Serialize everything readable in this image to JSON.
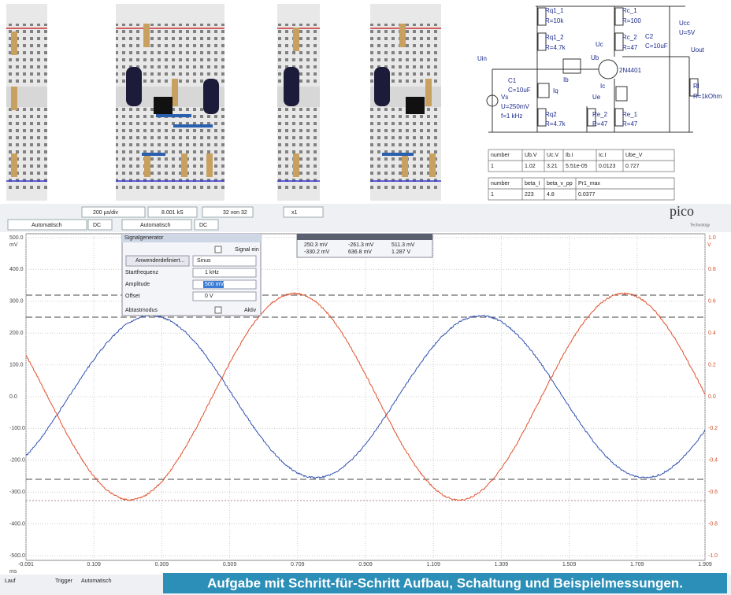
{
  "schematic": {
    "labels": [
      "Rq1_1",
      "R=10k",
      "Rq1_2",
      "R=4.7k",
      "Rc_1",
      "R=100",
      "Rc_2",
      "R=47",
      "C2",
      "C=10uF",
      "Ucc",
      "U=5V",
      "Uout",
      "Uin",
      "Uc",
      "Ub",
      "2N4401",
      "C1",
      "C=10uF",
      "Ib",
      "Iq",
      "Ic",
      "Ue",
      "Vs",
      "U=250mV",
      "f=1 kHz",
      "Rq2",
      "R=4.7k",
      "Re_2",
      "R=47",
      "Re_1",
      "R=47",
      "Rl",
      "R=1kOhm"
    ]
  },
  "table1": {
    "header": [
      "number",
      "Ub.V",
      "Uc.V",
      "Ib.I",
      "Ic.I",
      "Ube_V"
    ],
    "row": [
      "1",
      "1.02",
      "3.21",
      "5.51e-05",
      "0.0123",
      "0.727"
    ]
  },
  "table2": {
    "header": [
      "number",
      "beta_I",
      "beta_v_pp",
      "Pr1_max"
    ],
    "row": [
      "1",
      "223",
      "4.8",
      "0.0377"
    ]
  },
  "toolbar": {
    "timebase": "200 µs/div",
    "samples": "8.001 kS",
    "buffer": "32 von 32",
    "zoom": "x1",
    "range_a": "Automatisch",
    "coupling_a": "DC",
    "range_b": "Automatisch",
    "coupling_b": "DC",
    "logo": "pico",
    "logo_sub": "Technology"
  },
  "generator": {
    "title": "Signalgenerator",
    "signal_on": "Signal ein",
    "custom": "Anwenderdefiniert...",
    "wave": "Sinus",
    "freq_label": "Startfrequenz",
    "freq": "1 kHz",
    "amp_label": "Amplitude",
    "amp": "500 mV",
    "offset_label": "Offset",
    "offset": "0 V",
    "sweep_label": "Abtastmodus",
    "sweep": "Aktiv"
  },
  "measure": {
    "rows": [
      [
        "250.3 mV",
        "-261.3 mV",
        "511.3 mV"
      ],
      [
        "-330.2 mV",
        "636.8 mV",
        "1.287 V"
      ]
    ]
  },
  "scope": {
    "left_unit": "mV",
    "right_unit": "V",
    "x_unit": "ms",
    "left_ticks": [
      "500.0",
      "400.0",
      "300.0",
      "200.0",
      "100.0",
      "0.0",
      "-100.0",
      "-200.0",
      "-300.0",
      "-400.0",
      "-500.0"
    ],
    "right_ticks": [
      "1.0",
      "0.8",
      "0.6",
      "0.4",
      "0.2",
      "0.0",
      "-0.2",
      "-0.4",
      "-0.6",
      "-0.8",
      "-1.0"
    ],
    "x_ticks": [
      "-0.091",
      "0.109",
      "0.309",
      "0.509",
      "0.709",
      "0.909",
      "1.109",
      "1.309",
      "1.509",
      "1.709",
      "1.909"
    ]
  },
  "statusbar": {
    "run": "Lauf",
    "trigger": "Trigger",
    "mode": "Automatisch"
  },
  "caption": "Aufgabe mit Schritt-für-Schritt Aufbau, Schaltung und Beispielmessungen."
}
